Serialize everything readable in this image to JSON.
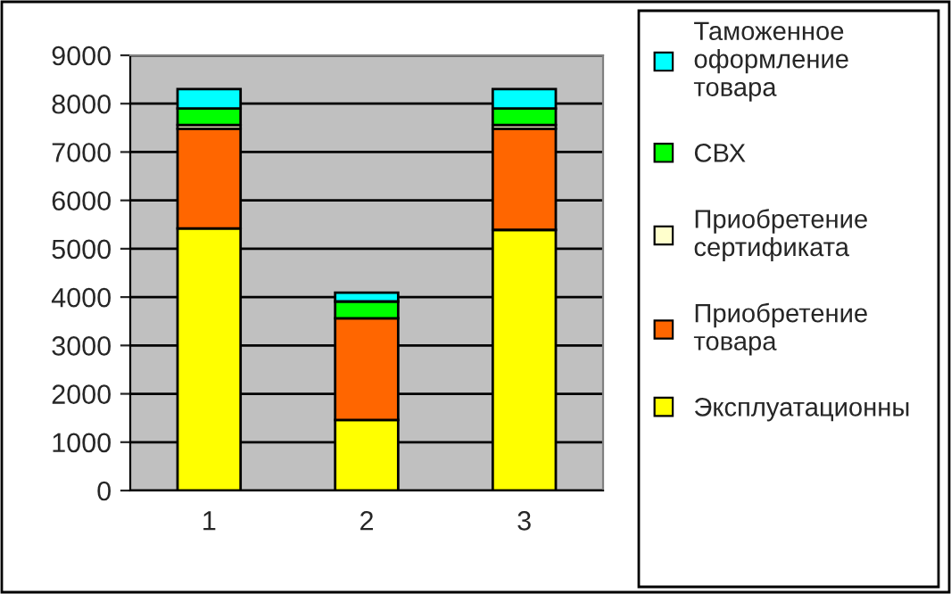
{
  "chart_data": {
    "type": "bar",
    "stacked": true,
    "categories": [
      "1",
      "2",
      "3"
    ],
    "series": [
      {
        "name": "Эксплуатационны",
        "color": "#ffff00",
        "values": [
          5420,
          1460,
          5390
        ]
      },
      {
        "name": "Приобретение товара",
        "color": "#ff6600",
        "values": [
          2060,
          2100,
          2090
        ]
      },
      {
        "name": "Приобретение сертификата",
        "color": "#ffffcc",
        "values": [
          80,
          null,
          80
        ]
      },
      {
        "name": "СВХ",
        "color": "#00ff00",
        "values": [
          340,
          350,
          340
        ]
      },
      {
        "name": "Таможенное оформление товара",
        "color": "#00ffff",
        "values": [
          400,
          180,
          400
        ]
      }
    ],
    "ylim": [
      0,
      9000
    ],
    "yticks": [
      0,
      1000,
      2000,
      3000,
      4000,
      5000,
      6000,
      7000,
      8000,
      9000
    ],
    "grid": "y",
    "legend": "right"
  }
}
